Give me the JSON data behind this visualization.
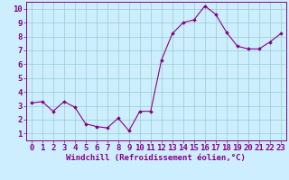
{
  "x": [
    0,
    1,
    2,
    3,
    4,
    5,
    6,
    7,
    8,
    9,
    10,
    11,
    12,
    13,
    14,
    15,
    16,
    17,
    18,
    19,
    20,
    21,
    22,
    23
  ],
  "y": [
    3.2,
    3.3,
    2.6,
    3.3,
    2.9,
    1.7,
    1.5,
    1.4,
    2.1,
    1.2,
    2.6,
    2.6,
    6.3,
    8.2,
    9.0,
    9.2,
    10.2,
    9.6,
    8.3,
    7.3,
    7.1,
    7.1,
    7.6,
    8.2
  ],
  "line_color": "#880088",
  "marker_color": "#880088",
  "bg_color": "#cceeff",
  "grid_color": "#99cccc",
  "xlabel": "Windchill (Refroidissement éolien,°C)",
  "xlim": [
    -0.5,
    23.5
  ],
  "ylim": [
    0.5,
    10.5
  ],
  "yticks": [
    1,
    2,
    3,
    4,
    5,
    6,
    7,
    8,
    9,
    10
  ],
  "xticks": [
    0,
    1,
    2,
    3,
    4,
    5,
    6,
    7,
    8,
    9,
    10,
    11,
    12,
    13,
    14,
    15,
    16,
    17,
    18,
    19,
    20,
    21,
    22,
    23
  ],
  "xlabel_fontsize": 6.5,
  "tick_fontsize": 6.5,
  "label_color": "#880088",
  "spine_color": "#880088"
}
